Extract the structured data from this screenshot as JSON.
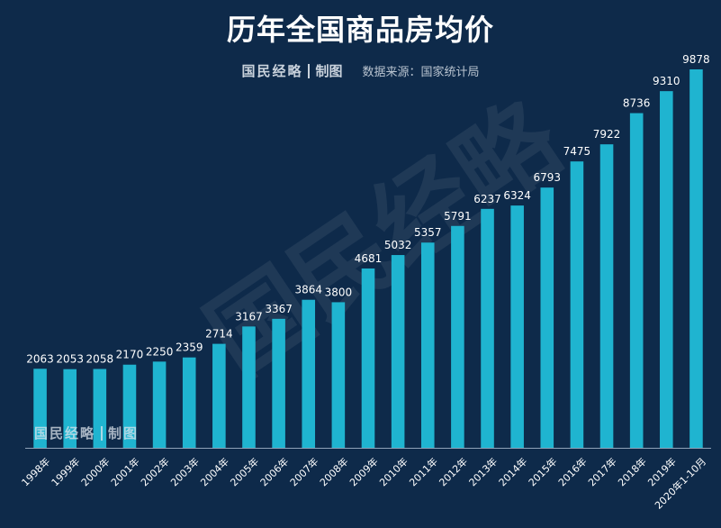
{
  "title": "历年全国商品房均价",
  "credit": {
    "brand": "国民经略",
    "made": "制图",
    "source": "数据来源：国家统计局"
  },
  "watermark": {
    "brand": "国民经略",
    "made": "制图",
    "diagonal": "国民经略"
  },
  "colors": {
    "background": "#0e2a4a",
    "bar": "#1fb4d0",
    "axis": "#8fa3b8",
    "text": "#ffffff"
  },
  "chart_data": {
    "type": "bar",
    "title": "历年全国商品房均价",
    "xlabel": "",
    "ylabel": "",
    "ylim": [
      0,
      9878
    ],
    "grid": false,
    "categories": [
      "1998年",
      "1999年",
      "2000年",
      "2001年",
      "2002年",
      "2003年",
      "2004年",
      "2005年",
      "2006年",
      "2007年",
      "2008年",
      "2009年",
      "2010年",
      "2011年",
      "2012年",
      "2013年",
      "2014年",
      "2015年",
      "2016年",
      "2017年",
      "2018年",
      "2019年",
      "2020年1-10月"
    ],
    "values": [
      2063,
      2053,
      2058,
      2170,
      2250,
      2359,
      2714,
      3167,
      3367,
      3864,
      3800,
      4681,
      5032,
      5357,
      5791,
      6237,
      6324,
      6793,
      7475,
      7922,
      8736,
      9310,
      9878
    ]
  }
}
